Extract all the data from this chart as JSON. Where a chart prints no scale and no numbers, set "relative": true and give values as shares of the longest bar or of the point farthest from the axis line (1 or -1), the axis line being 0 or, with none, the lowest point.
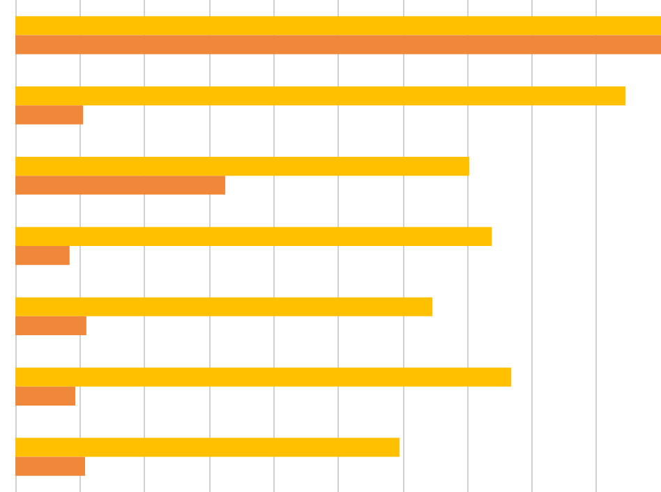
{
  "chart_data": {
    "type": "bar",
    "orientation": "horizontal",
    "relative": true,
    "grid": true,
    "categories": [
      null,
      null,
      null,
      null,
      null,
      null,
      null
    ],
    "series": [
      {
        "color": "#ffc000",
        "values": [
          1,
          0.945,
          0.703,
          0.738,
          0.646,
          0.768,
          0.595
        ]
      },
      {
        "color": "#f0883c",
        "values": [
          1,
          0.105,
          0.325,
          0.084,
          0.11,
          0.093,
          0.108
        ]
      }
    ]
  }
}
